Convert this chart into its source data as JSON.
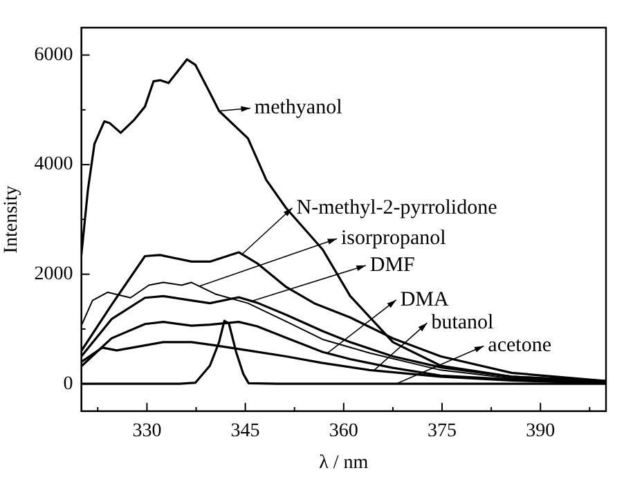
{
  "chart_data": {
    "type": "line",
    "xlabel": "λ / nm",
    "ylabel": "Intensity",
    "xlim": [
      320,
      400
    ],
    "ylim": [
      -500,
      6500
    ],
    "xticks": [
      {
        "value": 322.5,
        "label": null
      },
      330,
      {
        "value": 337.5,
        "label": null
      },
      345,
      {
        "value": 352.5,
        "label": null
      },
      360,
      {
        "value": 367.5,
        "label": null
      },
      375,
      {
        "value": 382.5,
        "label": null
      },
      390,
      {
        "value": 397.5,
        "label": null
      }
    ],
    "yticks": [
      0,
      {
        "value": 1000,
        "label": null
      },
      2000,
      {
        "value": 3000,
        "label": null
      },
      4000,
      {
        "value": 5000,
        "label": null
      },
      6000
    ],
    "grid": false,
    "legend": "right",
    "marker": "none",
    "line_style": "solid",
    "series": [
      {
        "name": "methyanol",
        "color": "#000000",
        "x": [
          320,
          321,
          322,
          323.5,
          324.3,
          326,
          328,
          329.7,
          331,
          332,
          333.3,
          334.6,
          336.1,
          337.4,
          339.6,
          341,
          345.4,
          348.2,
          351.2,
          356.8,
          361,
          367.5,
          374.8,
          385.6,
          400
        ],
        "values": [
          2350,
          3540,
          4380,
          4790,
          4760,
          4580,
          4810,
          5060,
          5520,
          5540,
          5490,
          5690,
          5920,
          5820,
          5310,
          4980,
          4480,
          3720,
          3210,
          2450,
          1600,
          760,
          330,
          130,
          50
        ]
      },
      {
        "name": "N-methyl-2-pyrrolidone",
        "color": "#000000",
        "x": [
          320,
          324.6,
          329.7,
          332,
          336.8,
          339.6,
          344,
          346.8,
          351.2,
          355.5,
          361,
          367.5,
          374.8,
          385.6,
          400
        ],
        "values": [
          600,
          1440,
          2330,
          2350,
          2230,
          2230,
          2400,
          2200,
          1770,
          1470,
          1210,
          830,
          500,
          200,
          50
        ]
      },
      {
        "name": "isorpropanol",
        "color": "#000000",
        "x": [
          320,
          321.7,
          324,
          327.5,
          330.3,
          332.5,
          335.3,
          336.8,
          340.4,
          345.4,
          351.2,
          356.8,
          364,
          374.8,
          385.6,
          400
        ],
        "values": [
          1060,
          1520,
          1670,
          1570,
          1800,
          1850,
          1800,
          1850,
          1640,
          1470,
          1140,
          810,
          560,
          250,
          100,
          50
        ]
      },
      {
        "name": "DMF",
        "color": "#000000",
        "x": [
          320,
          324.6,
          329.7,
          332.5,
          336.8,
          339.6,
          344,
          346.8,
          351.2,
          356.8,
          361,
          367.5,
          374.8,
          385.6,
          400
        ],
        "values": [
          500,
          1180,
          1570,
          1600,
          1520,
          1470,
          1580,
          1480,
          1260,
          960,
          760,
          500,
          300,
          130,
          40
        ]
      },
      {
        "name": "DMA",
        "color": "#000000",
        "x": [
          320,
          324.6,
          329.7,
          332.5,
          336.8,
          339.6,
          344,
          346.8,
          351.2,
          356.8,
          361,
          367.5,
          374.8,
          385.6,
          400
        ],
        "values": [
          320,
          830,
          1090,
          1130,
          1060,
          1080,
          1130,
          1050,
          840,
          580,
          450,
          290,
          150,
          80,
          30
        ]
      },
      {
        "name": "butanol",
        "color": "#000000",
        "x": [
          320,
          323.2,
          325.4,
          329.7,
          332.5,
          336.8,
          340.4,
          345.4,
          351.2,
          356.8,
          364,
          374.8,
          385.6,
          400
        ],
        "values": [
          400,
          660,
          610,
          700,
          760,
          760,
          700,
          610,
          500,
          380,
          250,
          130,
          60,
          10
        ]
      },
      {
        "name": "acetone",
        "color": "#000000",
        "x": [
          320,
          335,
          337.4,
          339.6,
          341,
          341.8,
          342.5,
          343.6,
          344.7,
          345.5,
          350,
          400
        ],
        "values": [
          0,
          0,
          20,
          330,
          760,
          1150,
          1100,
          580,
          180,
          10,
          0,
          0
        ]
      }
    ]
  }
}
